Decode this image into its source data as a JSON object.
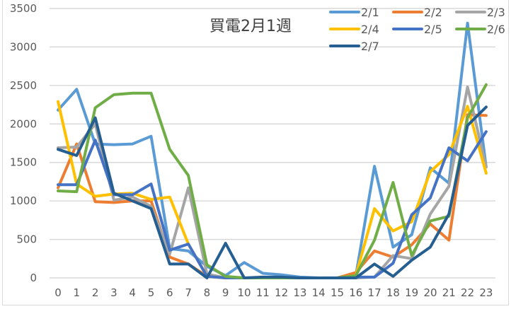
{
  "chart_data": {
    "type": "line",
    "title": "買電2月1週",
    "xlabel": "",
    "ylabel": "",
    "ylim": [
      0,
      3500
    ],
    "yticks": [
      0,
      500,
      1000,
      1500,
      2000,
      2500,
      3000,
      3500
    ],
    "grid": true,
    "legend_position": "top-right",
    "categories": [
      "0",
      "1",
      "2",
      "3",
      "4",
      "5",
      "6",
      "7",
      "8",
      "9",
      "10",
      "11",
      "12",
      "13",
      "14",
      "15",
      "16",
      "17",
      "18",
      "19",
      "20",
      "21",
      "22",
      "23"
    ],
    "series": [
      {
        "name": "2/1",
        "color": "#5b9bd5",
        "values": [
          2180,
          2450,
          1740,
          1730,
          1740,
          1840,
          380,
          350,
          150,
          30,
          200,
          60,
          40,
          10,
          0,
          0,
          30,
          1450,
          400,
          560,
          1430,
          1230,
          3310,
          1440
        ]
      },
      {
        "name": "2/2",
        "color": "#ed7d31",
        "values": [
          1170,
          1740,
          990,
          980,
          1000,
          1000,
          270,
          180,
          20,
          0,
          0,
          0,
          0,
          0,
          0,
          0,
          70,
          350,
          270,
          430,
          700,
          490,
          2120,
          2110
        ]
      },
      {
        "name": "2/3",
        "color": "#a5a5a5",
        "values": [
          1690,
          1700,
          2000,
          1010,
          1050,
          930,
          310,
          1170,
          50,
          0,
          0,
          0,
          0,
          0,
          0,
          0,
          0,
          10,
          290,
          250,
          830,
          1190,
          2480,
          1440
        ]
      },
      {
        "name": "2/4",
        "color": "#ffc000",
        "values": [
          2290,
          1220,
          1060,
          1090,
          1100,
          1020,
          1050,
          440,
          20,
          0,
          0,
          0,
          0,
          0,
          0,
          0,
          30,
          900,
          610,
          730,
          1380,
          1600,
          2230,
          1360
        ]
      },
      {
        "name": "2/5",
        "color": "#4472c4",
        "values": [
          1210,
          1210,
          1790,
          1080,
          1080,
          1220,
          360,
          440,
          20,
          0,
          0,
          0,
          0,
          0,
          0,
          0,
          10,
          10,
          190,
          820,
          1040,
          1690,
          1520,
          1900
        ]
      },
      {
        "name": "2/6",
        "color": "#70ad47",
        "values": [
          1130,
          1120,
          2210,
          2380,
          2400,
          2400,
          1670,
          1330,
          170,
          20,
          0,
          0,
          0,
          0,
          0,
          0,
          30,
          490,
          1240,
          290,
          740,
          800,
          2080,
          2510
        ]
      },
      {
        "name": "2/7",
        "color": "#255e91",
        "values": [
          1670,
          1590,
          2080,
          1100,
          1000,
          900,
          180,
          180,
          0,
          450,
          0,
          10,
          10,
          0,
          0,
          0,
          0,
          180,
          20,
          230,
          400,
          830,
          1980,
          2220
        ]
      }
    ]
  }
}
